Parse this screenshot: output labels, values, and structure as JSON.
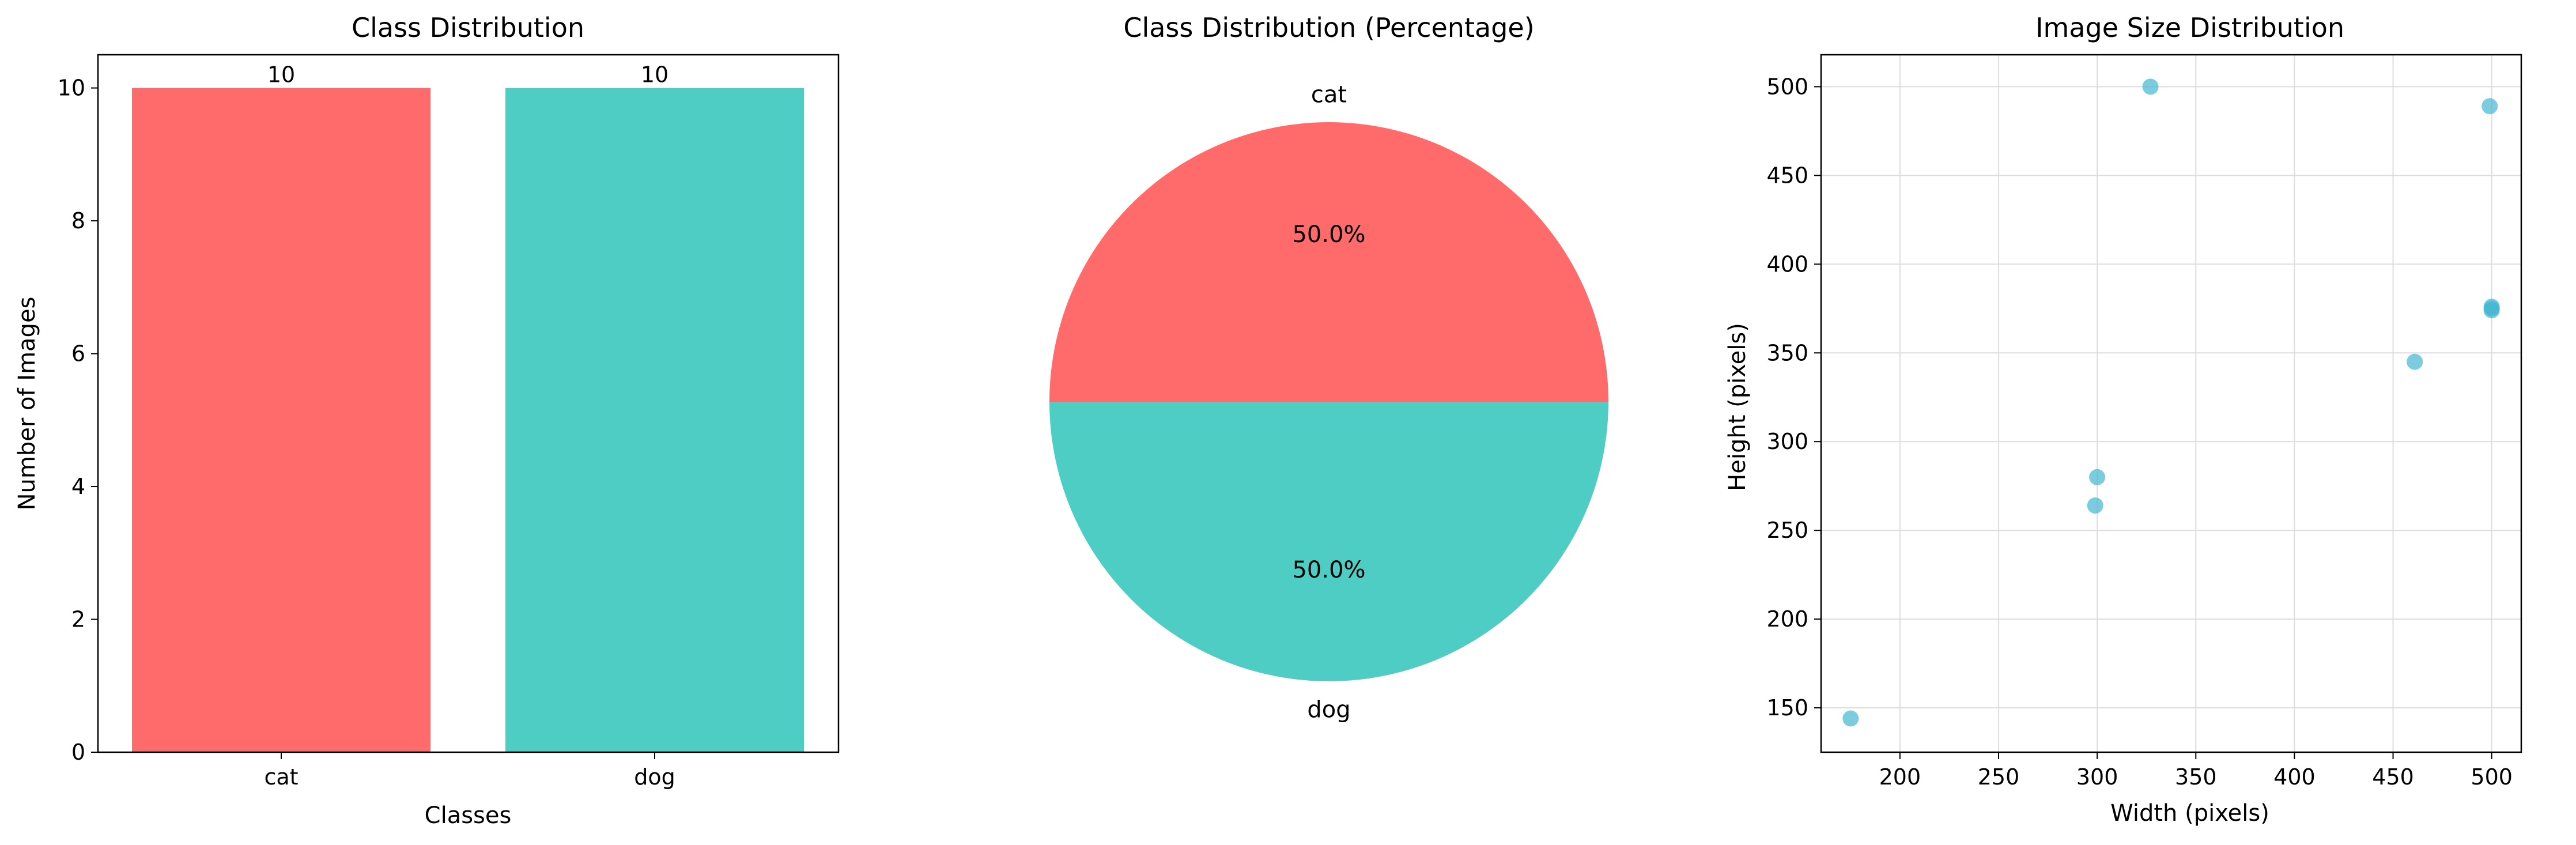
{
  "colors": {
    "cat": "#FF6B6B",
    "dog": "#4ECDC4",
    "scatter": "#45B7D1",
    "grid": "#dddddd",
    "axis": "#000000"
  },
  "chart_data": [
    {
      "type": "bar",
      "title": "Class Distribution",
      "xlabel": "Classes",
      "ylabel": "Number of Images",
      "categories": [
        "cat",
        "dog"
      ],
      "values": [
        10,
        10
      ],
      "data_labels": [
        "10",
        "10"
      ],
      "ylim": [
        0,
        10.5
      ],
      "yticks": [
        0,
        2,
        4,
        6,
        8,
        10
      ],
      "grid": false
    },
    {
      "type": "pie",
      "title": "Class Distribution (Percentage)",
      "categories": [
        "cat",
        "dog"
      ],
      "values": [
        50.0,
        50.0
      ],
      "percent_labels": [
        "50.0%",
        "50.0%"
      ]
    },
    {
      "type": "scatter",
      "title": "Image Size Distribution",
      "xlabel": "Width (pixels)",
      "ylabel": "Height (pixels)",
      "x": [
        175,
        299,
        300,
        327,
        461,
        499,
        500,
        500,
        500
      ],
      "y": [
        144,
        264,
        280,
        500,
        345,
        489,
        375,
        374,
        376
      ],
      "xlim": [
        160,
        515
      ],
      "ylim": [
        125,
        518
      ],
      "xticks": [
        200,
        250,
        300,
        350,
        400,
        450,
        500
      ],
      "yticks": [
        150,
        200,
        250,
        300,
        350,
        400,
        450,
        500
      ],
      "grid": true
    }
  ]
}
